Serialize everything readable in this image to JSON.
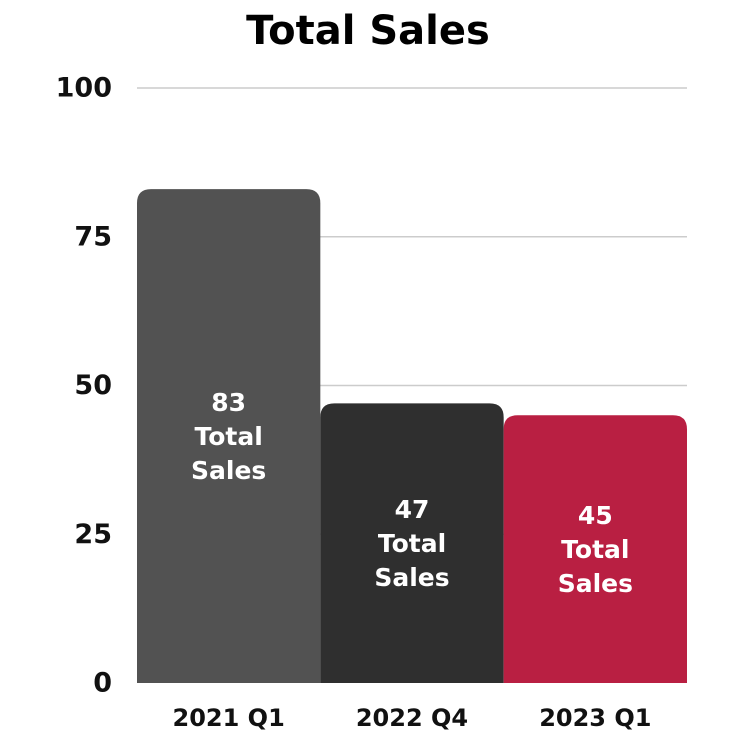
{
  "chart_data": {
    "type": "bar",
    "title": "Total Sales",
    "xlabel": "",
    "ylabel": "",
    "categories": [
      "2021 Q1",
      "2022 Q4",
      "2023 Q1"
    ],
    "values": [
      83,
      47,
      45
    ],
    "data_labels": [
      [
        "83",
        "Total",
        "Sales"
      ],
      [
        "47",
        "Total",
        "Sales"
      ],
      [
        "45",
        "Total",
        "Sales"
      ]
    ],
    "ylim": [
      0,
      100
    ],
    "yticks": [
      "0",
      "25",
      "50",
      "75",
      "100"
    ],
    "grid": true,
    "legend": "none",
    "colors": [
      "#525252",
      "#2f2f2f",
      "#b91f42"
    ],
    "grid_color": "#cccccc"
  }
}
